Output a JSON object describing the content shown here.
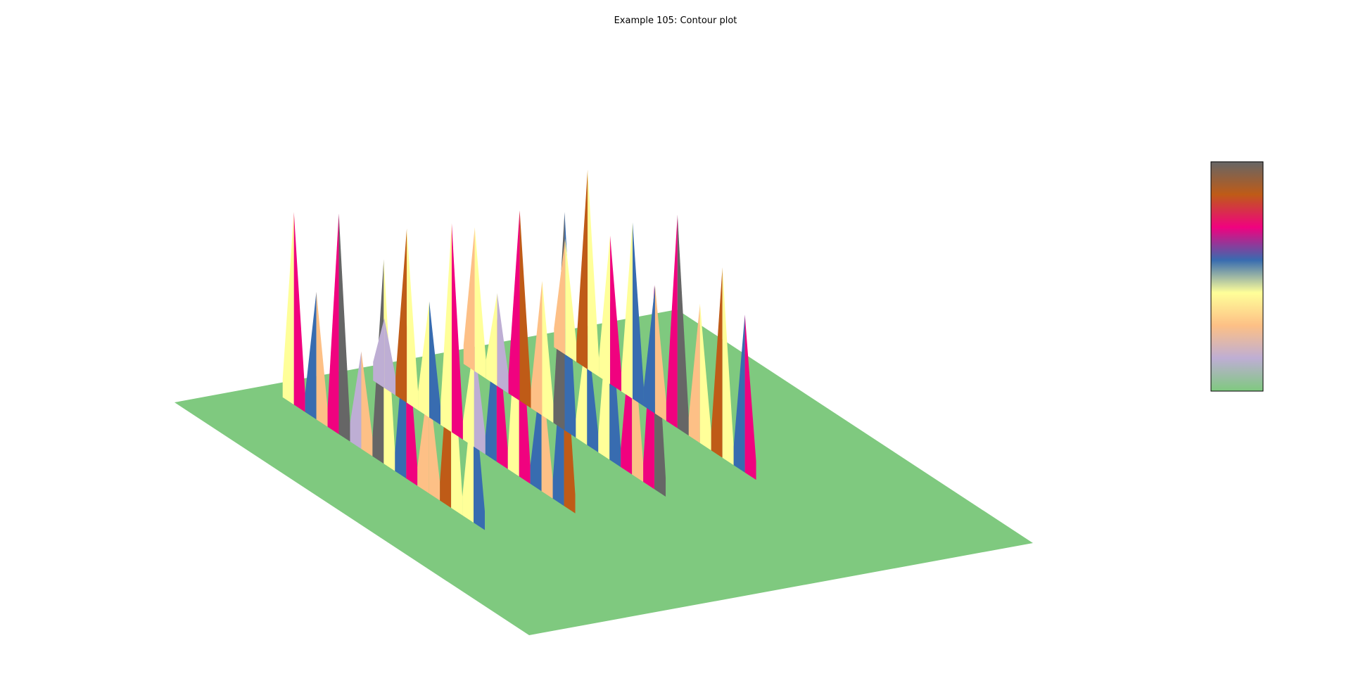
{
  "chart_data": {
    "type": "surface",
    "title": "Example 105: Contour plot",
    "xlabel": "",
    "ylabel": "",
    "zlabel": "",
    "colormap": [
      "#7fc97f",
      "#beaed4",
      "#fdc086",
      "#ffff99",
      "#386cb0",
      "#f0027f",
      "#bf5b17",
      "#666666"
    ],
    "colorbar_ticks": [],
    "grid": false,
    "legend": "none",
    "description_of_surface": "ridges",
    "ridge_peaks": [
      [
        0.83,
        0.55,
        0.95,
        0.42,
        0.88,
        0.7,
        0.48,
        0.8,
        0.6
      ],
      [
        0.3,
        0.75,
        0.5,
        0.9,
        0.45,
        0.65,
        0.85,
        0.52,
        0.78
      ],
      [
        0.62,
        0.4,
        0.82,
        0.58,
        0.94,
        0.5,
        0.72,
        0.66,
        0.88
      ],
      [
        0.5,
        0.86,
        0.64,
        0.76,
        0.55,
        0.92,
        0.6,
        0.82,
        0.68
      ]
    ]
  }
}
